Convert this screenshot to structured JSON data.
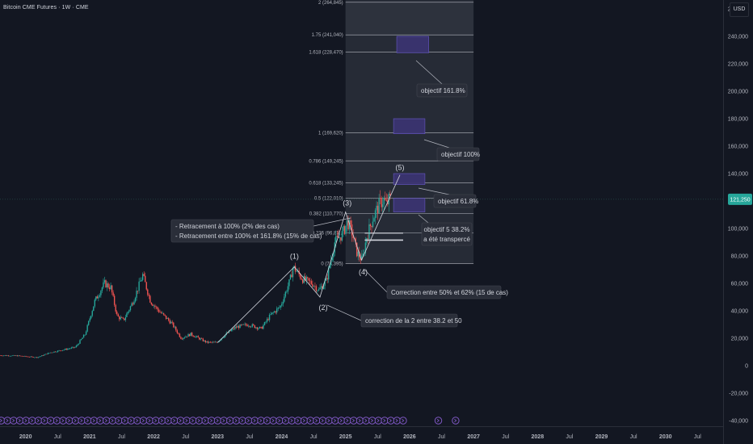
{
  "header": {
    "title": "Bitcoin CME Futures · 1W · CME",
    "currency": "USD"
  },
  "colors": {
    "background": "#131722",
    "bullish": "#26a69a",
    "bearish": "#ef5350",
    "fib_zone": "#262b36",
    "fib_line": "#b2b5be",
    "target_box": "#3b3470",
    "wave_line": "#d1d4dc",
    "event_icon": "#7e57c2",
    "price_badge": "#26a69a"
  },
  "chart_data": {
    "type": "candlestick",
    "title": "Bitcoin CME Futures · 1W · CME",
    "y_axis": {
      "ticks": [
        260000,
        240000,
        220000,
        200000,
        180000,
        160000,
        140000,
        120000,
        100000,
        80000,
        60000,
        40000,
        20000,
        0,
        -20000,
        -40000
      ],
      "tick_labels": [
        "260,000",
        "240,000",
        "220,000",
        "200,000",
        "180,000",
        "160,000",
        "140,000",
        "120,000",
        "100,000",
        "80,000",
        "60,000",
        "40,000",
        "20,000",
        "0",
        "-20,000",
        "-40,000"
      ],
      "ylim": [
        -40000,
        260000
      ]
    },
    "x_axis": {
      "ticks": [
        {
          "t": 2020.0,
          "label": "2020",
          "bold": true
        },
        {
          "t": 2020.5,
          "label": "Jul",
          "bold": false
        },
        {
          "t": 2021.0,
          "label": "2021",
          "bold": true
        },
        {
          "t": 2021.5,
          "label": "Jul",
          "bold": false
        },
        {
          "t": 2022.0,
          "label": "2022",
          "bold": true
        },
        {
          "t": 2022.5,
          "label": "Jul",
          "bold": false
        },
        {
          "t": 2023.0,
          "label": "2023",
          "bold": true
        },
        {
          "t": 2023.5,
          "label": "Jul",
          "bold": false
        },
        {
          "t": 2024.0,
          "label": "2024",
          "bold": true
        },
        {
          "t": 2024.5,
          "label": "Jul",
          "bold": false
        },
        {
          "t": 2025.0,
          "label": "2025",
          "bold": true
        },
        {
          "t": 2025.5,
          "label": "Jul",
          "bold": false
        },
        {
          "t": 2026.0,
          "label": "2026",
          "bold": true
        },
        {
          "t": 2026.5,
          "label": "Jul",
          "bold": false
        },
        {
          "t": 2027.0,
          "label": "2027",
          "bold": true
        },
        {
          "t": 2027.5,
          "label": "Jul",
          "bold": false
        },
        {
          "t": 2028.0,
          "label": "2028",
          "bold": true
        },
        {
          "t": 2028.5,
          "label": "Jul",
          "bold": false
        },
        {
          "t": 2029.0,
          "label": "2029",
          "bold": true
        },
        {
          "t": 2029.5,
          "label": "Jul",
          "bold": false
        },
        {
          "t": 2030.0,
          "label": "2030",
          "bold": true
        },
        {
          "t": 2030.5,
          "label": "Jul",
          "bold": false
        }
      ],
      "xlim": [
        2019.6,
        2030.9
      ]
    },
    "price_path": [
      [
        2019.6,
        7500
      ],
      [
        2019.9,
        7200
      ],
      [
        2020.2,
        6000
      ],
      [
        2020.4,
        9500
      ],
      [
        2020.6,
        11500
      ],
      [
        2020.8,
        13500
      ],
      [
        2020.95,
        23000
      ],
      [
        2021.1,
        47000
      ],
      [
        2021.25,
        60000
      ],
      [
        2021.35,
        57000
      ],
      [
        2021.45,
        36000
      ],
      [
        2021.55,
        33000
      ],
      [
        2021.7,
        47000
      ],
      [
        2021.85,
        66000
      ],
      [
        2021.97,
        47000
      ],
      [
        2022.1,
        40000
      ],
      [
        2022.3,
        31000
      ],
      [
        2022.45,
        20000
      ],
      [
        2022.6,
        23000
      ],
      [
        2022.85,
        17000
      ],
      [
        2023.0,
        16800
      ],
      [
        2023.15,
        23000
      ],
      [
        2023.3,
        28000
      ],
      [
        2023.5,
        30000
      ],
      [
        2023.7,
        27000
      ],
      [
        2023.85,
        37000
      ],
      [
        2024.0,
        43000
      ],
      [
        2024.15,
        62000
      ],
      [
        2024.2,
        72000
      ],
      [
        2024.35,
        63000
      ],
      [
        2024.5,
        60000
      ],
      [
        2024.6,
        55000
      ],
      [
        2024.72,
        62000
      ],
      [
        2024.85,
        90000
      ],
      [
        2024.97,
        96000
      ],
      [
        2025.05,
        105000
      ],
      [
        2025.12,
        97000
      ],
      [
        2025.2,
        82000
      ],
      [
        2025.28,
        77000
      ],
      [
        2025.35,
        94000
      ],
      [
        2025.45,
        108000
      ],
      [
        2025.55,
        118000
      ],
      [
        2025.62,
        121000
      ],
      [
        2025.66,
        117000
      ],
      [
        2025.7,
        121250
      ]
    ],
    "current_price": {
      "value": 121250,
      "label": "121,250"
    },
    "fibonacci": {
      "x_start": 2025.0,
      "x_end": 2027.0,
      "levels": [
        {
          "ratio": 2,
          "price": 264845,
          "label": "2 (264,845)"
        },
        {
          "ratio": 1.75,
          "price": 241040,
          "label": "1.75 (241,040)"
        },
        {
          "ratio": 1.618,
          "price": 228470,
          "label": "1.618 (228,470)"
        },
        {
          "ratio": 1,
          "price": 169620,
          "label": "1 (169,620)"
        },
        {
          "ratio": 0.786,
          "price": 149245,
          "label": "0.786 (149,245)"
        },
        {
          "ratio": 0.618,
          "price": 133245,
          "label": "0.618 (133,245)"
        },
        {
          "ratio": 0.5,
          "price": 122010,
          "label": "0.5 (122,010)"
        },
        {
          "ratio": 0.382,
          "price": 110770,
          "label": "0.382 (110,770)"
        },
        {
          "ratio": 0.236,
          "price": 96870,
          "label": "0.236 (96,87..."
        },
        {
          "ratio": 0,
          "price": 74395,
          "label": "0 (74,395)"
        }
      ]
    },
    "target_boxes": [
      {
        "x0": 2025.8,
        "x1": 2026.3,
        "y0": 228000,
        "y1": 240000
      },
      {
        "x0": 2025.75,
        "x1": 2026.24,
        "y0": 169000,
        "y1": 180000
      },
      {
        "x0": 2025.75,
        "x1": 2026.24,
        "y0": 132000,
        "y1": 140000
      },
      {
        "x0": 2025.75,
        "x1": 2026.24,
        "y0": 112000,
        "y1": 122000
      }
    ],
    "elliott_waves": [
      {
        "label": "(1)",
        "t": 2024.2,
        "price": 72000
      },
      {
        "label": "(2)",
        "t": 2024.6,
        "price": 50000
      },
      {
        "label": "(3)",
        "t": 2025.0,
        "price": 112000
      },
      {
        "label": "(4)",
        "t": 2025.25,
        "price": 77000
      },
      {
        "label": "(5)",
        "t": 2025.85,
        "price": 139000
      }
    ],
    "wave_path": [
      [
        2023.0,
        16800
      ],
      [
        2024.2,
        72000
      ],
      [
        2024.6,
        50000
      ],
      [
        2025.0,
        112000
      ],
      [
        2025.25,
        77000
      ],
      [
        2025.85,
        139000
      ]
    ],
    "annotations": [
      {
        "id": "target-161",
        "text": "objectif 161.8%"
      },
      {
        "id": "target-100",
        "text": "objectif 100%"
      },
      {
        "id": "target-618",
        "text": "objectif 61.8%"
      },
      {
        "id": "target-382",
        "text": "objectif 5 38.2%",
        "text2": "a été transpercé"
      },
      {
        "id": "retracement",
        "text": "- Retracement à 100% (2% des cas)",
        "text2": "- Retracement entre 100% et 161.8% (15% de cas)"
      },
      {
        "id": "correction-4",
        "text": "Correction entre 50% et 62% (15 de cas)"
      },
      {
        "id": "correction-2",
        "text": "correction de la 2 entre 38.2 et 50"
      }
    ],
    "event_markers": {
      "count": 66,
      "t_start": 2019.62,
      "t_end": 2025.9,
      "extra": [
        2026.45,
        2026.72
      ]
    }
  }
}
